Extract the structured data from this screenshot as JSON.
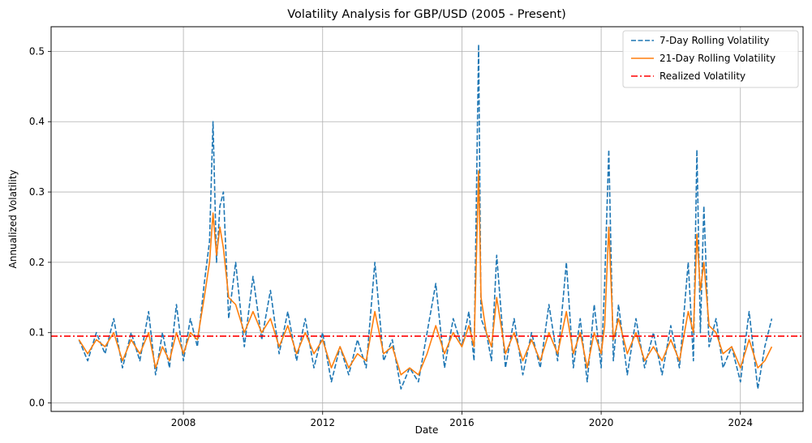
{
  "chart_data": {
    "type": "line",
    "title": "Volatility Analysis for GBP/USD (2005 - Present)",
    "xlabel": "Date",
    "ylabel": "Annualized Volatility",
    "xlim": [
      2004.2,
      2025.8
    ],
    "ylim": [
      -0.012,
      0.535
    ],
    "x_ticks": [
      2008,
      2012,
      2016,
      2020,
      2024
    ],
    "y_ticks": [
      0.0,
      0.1,
      0.2,
      0.3,
      0.4,
      0.5
    ],
    "grid": true,
    "legend_position": "top-right",
    "series": [
      {
        "name": "7-Day Rolling Volatility",
        "color": "#1f77b4",
        "style": "dashed",
        "x": [
          2005.0,
          2005.25,
          2005.5,
          2005.75,
          2006.0,
          2006.25,
          2006.5,
          2006.75,
          2007.0,
          2007.2,
          2007.4,
          2007.6,
          2007.8,
          2008.0,
          2008.2,
          2008.4,
          2008.6,
          2008.75,
          2008.85,
          2008.95,
          2009.05,
          2009.15,
          2009.3,
          2009.5,
          2009.75,
          2010.0,
          2010.25,
          2010.5,
          2010.75,
          2011.0,
          2011.25,
          2011.5,
          2011.75,
          2012.0,
          2012.25,
          2012.5,
          2012.75,
          2013.0,
          2013.25,
          2013.5,
          2013.75,
          2014.0,
          2014.25,
          2014.5,
          2014.75,
          2015.0,
          2015.25,
          2015.5,
          2015.75,
          2016.0,
          2016.2,
          2016.35,
          2016.48,
          2016.55,
          2016.7,
          2016.85,
          2017.0,
          2017.25,
          2017.5,
          2017.75,
          2018.0,
          2018.25,
          2018.5,
          2018.75,
          2019.0,
          2019.2,
          2019.4,
          2019.6,
          2019.8,
          2020.0,
          2020.1,
          2020.22,
          2020.35,
          2020.5,
          2020.75,
          2021.0,
          2021.25,
          2021.5,
          2021.75,
          2022.0,
          2022.25,
          2022.5,
          2022.65,
          2022.75,
          2022.85,
          2022.95,
          2023.1,
          2023.3,
          2023.5,
          2023.75,
          2024.0,
          2024.25,
          2024.5,
          2024.7,
          2024.9
        ],
        "values": [
          0.09,
          0.06,
          0.1,
          0.07,
          0.12,
          0.05,
          0.1,
          0.06,
          0.13,
          0.04,
          0.1,
          0.05,
          0.14,
          0.06,
          0.12,
          0.08,
          0.17,
          0.23,
          0.4,
          0.2,
          0.28,
          0.3,
          0.12,
          0.2,
          0.08,
          0.18,
          0.09,
          0.16,
          0.07,
          0.13,
          0.06,
          0.12,
          0.05,
          0.1,
          0.03,
          0.08,
          0.04,
          0.09,
          0.05,
          0.2,
          0.06,
          0.09,
          0.02,
          0.05,
          0.03,
          0.1,
          0.17,
          0.05,
          0.12,
          0.08,
          0.13,
          0.06,
          0.51,
          0.12,
          0.1,
          0.06,
          0.21,
          0.05,
          0.12,
          0.04,
          0.1,
          0.05,
          0.14,
          0.06,
          0.2,
          0.05,
          0.12,
          0.03,
          0.14,
          0.05,
          0.17,
          0.36,
          0.06,
          0.14,
          0.04,
          0.12,
          0.05,
          0.1,
          0.04,
          0.11,
          0.05,
          0.2,
          0.06,
          0.36,
          0.1,
          0.28,
          0.08,
          0.12,
          0.05,
          0.08,
          0.03,
          0.13,
          0.02,
          0.08,
          0.12
        ]
      },
      {
        "name": "21-Day Rolling Volatility",
        "color": "#ff7f0e",
        "style": "solid",
        "x": [
          2005.0,
          2005.25,
          2005.5,
          2005.75,
          2006.0,
          2006.25,
          2006.5,
          2006.75,
          2007.0,
          2007.2,
          2007.4,
          2007.6,
          2007.8,
          2008.0,
          2008.2,
          2008.4,
          2008.6,
          2008.75,
          2008.85,
          2008.95,
          2009.05,
          2009.15,
          2009.3,
          2009.5,
          2009.75,
          2010.0,
          2010.25,
          2010.5,
          2010.75,
          2011.0,
          2011.25,
          2011.5,
          2011.75,
          2012.0,
          2012.25,
          2012.5,
          2012.75,
          2013.0,
          2013.25,
          2013.5,
          2013.75,
          2014.0,
          2014.25,
          2014.5,
          2014.75,
          2015.0,
          2015.25,
          2015.5,
          2015.75,
          2016.0,
          2016.2,
          2016.35,
          2016.48,
          2016.55,
          2016.7,
          2016.85,
          2017.0,
          2017.25,
          2017.5,
          2017.75,
          2018.0,
          2018.25,
          2018.5,
          2018.75,
          2019.0,
          2019.2,
          2019.4,
          2019.6,
          2019.8,
          2020.0,
          2020.1,
          2020.22,
          2020.35,
          2020.5,
          2020.75,
          2021.0,
          2021.25,
          2021.5,
          2021.75,
          2022.0,
          2022.25,
          2022.5,
          2022.65,
          2022.75,
          2022.85,
          2022.95,
          2023.1,
          2023.3,
          2023.5,
          2023.75,
          2024.0,
          2024.25,
          2024.5,
          2024.7,
          2024.9
        ],
        "values": [
          0.09,
          0.07,
          0.09,
          0.08,
          0.1,
          0.06,
          0.09,
          0.07,
          0.1,
          0.05,
          0.08,
          0.06,
          0.1,
          0.07,
          0.1,
          0.09,
          0.15,
          0.2,
          0.27,
          0.21,
          0.25,
          0.22,
          0.15,
          0.14,
          0.1,
          0.13,
          0.1,
          0.12,
          0.08,
          0.11,
          0.07,
          0.1,
          0.07,
          0.09,
          0.05,
          0.08,
          0.05,
          0.07,
          0.06,
          0.13,
          0.07,
          0.08,
          0.04,
          0.05,
          0.04,
          0.07,
          0.11,
          0.07,
          0.1,
          0.08,
          0.11,
          0.08,
          0.33,
          0.15,
          0.1,
          0.08,
          0.15,
          0.07,
          0.1,
          0.06,
          0.09,
          0.06,
          0.1,
          0.07,
          0.13,
          0.07,
          0.1,
          0.05,
          0.1,
          0.07,
          0.11,
          0.25,
          0.09,
          0.12,
          0.07,
          0.1,
          0.06,
          0.08,
          0.06,
          0.09,
          0.06,
          0.13,
          0.1,
          0.24,
          0.16,
          0.2,
          0.11,
          0.1,
          0.07,
          0.08,
          0.05,
          0.09,
          0.05,
          0.06,
          0.08
        ]
      }
    ],
    "hlines": [
      {
        "name": "Realized Volatility",
        "color": "#ff0000",
        "style": "dashdot",
        "value": 0.095
      }
    ]
  }
}
